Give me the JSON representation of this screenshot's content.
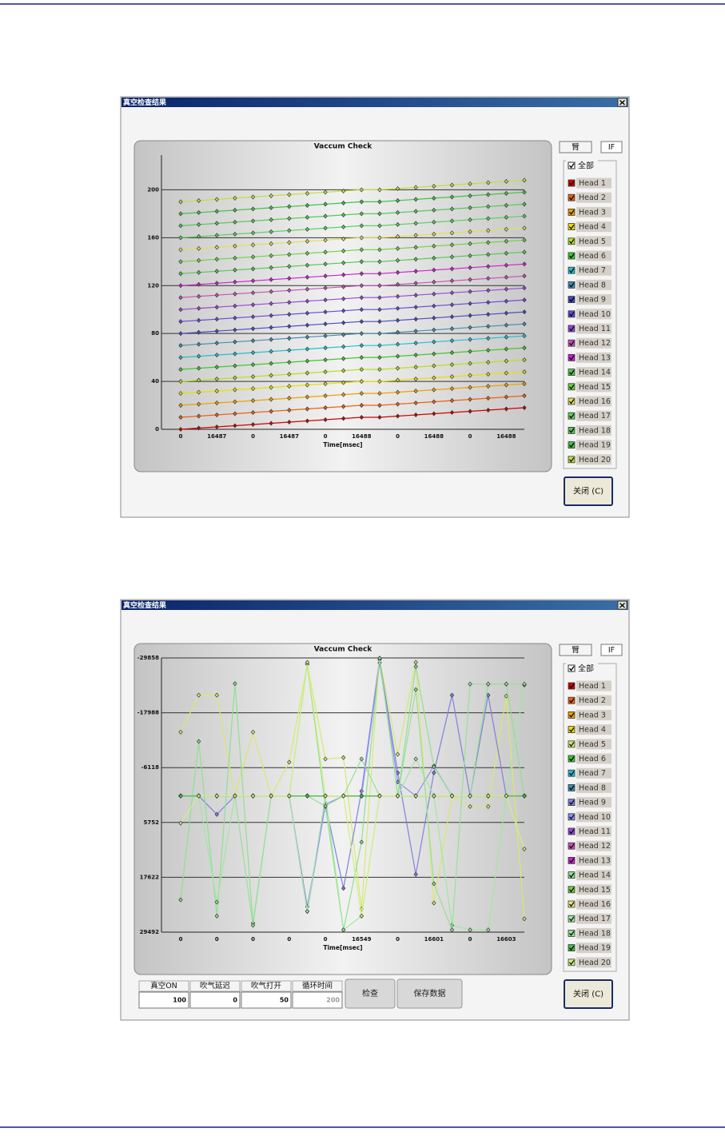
{
  "dialogs": [
    {
      "title": "真空检查结果",
      "tabs": [
        "臂",
        "IF"
      ],
      "all_label": "全部",
      "close": "关闭 (C)"
    },
    {
      "title": "真空检查结果",
      "tabs": [
        "臂",
        "IF"
      ],
      "all_label": "全部",
      "close": "关闭 (C)",
      "controls": [
        {
          "label": "真空ON",
          "value": 100
        },
        {
          "label": "吹气延迟",
          "value": 0
        },
        {
          "label": "吹气打开",
          "value": 50
        },
        {
          "label": "循环时间",
          "value": 200,
          "disabled": true
        }
      ],
      "buttons": [
        "检查",
        "保存数据"
      ]
    }
  ],
  "chart_data": [
    {
      "type": "line",
      "title": "Vaccum Check",
      "x_label": "Time[msec]",
      "grid": true,
      "categories": [
        "0",
        null,
        "16487",
        null,
        "0",
        null,
        "16487",
        null,
        "0",
        null,
        "16488",
        null,
        "0",
        null,
        "16488",
        null,
        "0",
        null,
        "16488",
        null
      ],
      "ylim": [
        0,
        229
      ],
      "yticks": [
        0,
        40,
        80,
        120,
        160,
        200
      ],
      "series": [
        {
          "name": "Head 1",
          "color": "#d00000",
          "values": [
            0,
            1,
            2,
            3,
            4,
            5,
            6,
            7,
            8,
            9,
            10,
            10,
            11,
            12,
            13,
            14,
            15,
            16,
            17,
            18
          ]
        },
        {
          "name": "Head 2",
          "color": "#f06010",
          "values": [
            10,
            11,
            12,
            13,
            14,
            15,
            16,
            17,
            18,
            19,
            20,
            20,
            21,
            22,
            23,
            24,
            25,
            26,
            27,
            28
          ]
        },
        {
          "name": "Head 3",
          "color": "#f0a000",
          "values": [
            20,
            21,
            22,
            23,
            24,
            25,
            26,
            27,
            28,
            29,
            30,
            30,
            31,
            32,
            33,
            34,
            35,
            36,
            37,
            38
          ]
        },
        {
          "name": "Head 4",
          "color": "#e8e000",
          "values": [
            30,
            31,
            32,
            33,
            34,
            35,
            36,
            37,
            38,
            39,
            40,
            40,
            41,
            42,
            43,
            44,
            45,
            46,
            47,
            48
          ]
        },
        {
          "name": "Head 5",
          "color": "#b8e020",
          "values": [
            40,
            41,
            42,
            43,
            44,
            45,
            46,
            47,
            48,
            49,
            50,
            50,
            51,
            52,
            53,
            54,
            55,
            56,
            57,
            58
          ]
        },
        {
          "name": "Head 6",
          "color": "#40c830",
          "values": [
            50,
            51,
            52,
            53,
            54,
            55,
            56,
            57,
            58,
            59,
            60,
            60,
            61,
            62,
            63,
            64,
            65,
            66,
            67,
            68
          ]
        },
        {
          "name": "Head 7",
          "color": "#20c0d0",
          "values": [
            60,
            61,
            62,
            63,
            64,
            65,
            66,
            67,
            68,
            69,
            70,
            70,
            71,
            72,
            73,
            74,
            75,
            76,
            77,
            78
          ]
        },
        {
          "name": "Head 8",
          "color": "#4090b0",
          "values": [
            70,
            71,
            72,
            73,
            74,
            75,
            76,
            77,
            78,
            79,
            80,
            80,
            81,
            82,
            83,
            84,
            85,
            86,
            87,
            88
          ]
        },
        {
          "name": "Head 9",
          "color": "#4848c8",
          "values": [
            80,
            81,
            82,
            83,
            84,
            85,
            86,
            87,
            88,
            89,
            90,
            90,
            91,
            92,
            93,
            94,
            95,
            96,
            97,
            98
          ]
        },
        {
          "name": "Head 10",
          "color": "#6848d8",
          "values": [
            90,
            91,
            92,
            93,
            94,
            95,
            96,
            97,
            98,
            99,
            100,
            100,
            101,
            102,
            103,
            104,
            105,
            106,
            107,
            108
          ]
        },
        {
          "name": "Head 11",
          "color": "#9848d8",
          "values": [
            100,
            101,
            102,
            103,
            104,
            105,
            106,
            107,
            108,
            109,
            110,
            110,
            111,
            112,
            113,
            114,
            115,
            116,
            117,
            118
          ]
        },
        {
          "name": "Head 12",
          "color": "#c850b8",
          "values": [
            110,
            111,
            112,
            113,
            114,
            115,
            116,
            117,
            118,
            119,
            120,
            120,
            121,
            122,
            123,
            124,
            125,
            126,
            127,
            128
          ]
        },
        {
          "name": "Head 13",
          "color": "#d020d0",
          "values": [
            120,
            121,
            122,
            123,
            124,
            125,
            126,
            127,
            128,
            129,
            130,
            130,
            131,
            132,
            133,
            134,
            135,
            136,
            137,
            138
          ]
        },
        {
          "name": "Head 14",
          "color": "#50c850",
          "values": [
            130,
            131,
            132,
            133,
            134,
            135,
            136,
            137,
            138,
            139,
            140,
            140,
            141,
            142,
            143,
            144,
            145,
            146,
            147,
            148
          ]
        },
        {
          "name": "Head 15",
          "color": "#70d040",
          "values": [
            140,
            141,
            142,
            143,
            144,
            145,
            146,
            147,
            148,
            149,
            150,
            150,
            151,
            152,
            153,
            154,
            155,
            156,
            157,
            158
          ]
        },
        {
          "name": "Head 16",
          "color": "#e0e050",
          "values": [
            150,
            151,
            152,
            153,
            154,
            155,
            156,
            157,
            158,
            159,
            160,
            160,
            161,
            162,
            163,
            164,
            165,
            166,
            167,
            168
          ]
        },
        {
          "name": "Head 17",
          "color": "#60d060",
          "values": [
            160,
            161,
            162,
            163,
            164,
            165,
            166,
            167,
            168,
            169,
            170,
            170,
            171,
            172,
            173,
            174,
            175,
            176,
            177,
            178
          ]
        },
        {
          "name": "Head 18",
          "color": "#58c858",
          "values": [
            170,
            171,
            172,
            173,
            174,
            175,
            176,
            177,
            178,
            179,
            180,
            180,
            181,
            182,
            183,
            184,
            185,
            186,
            187,
            188
          ]
        },
        {
          "name": "Head 19",
          "color": "#48c048",
          "values": [
            180,
            181,
            182,
            183,
            184,
            185,
            186,
            187,
            188,
            189,
            190,
            190,
            191,
            192,
            193,
            194,
            195,
            196,
            197,
            198
          ]
        },
        {
          "name": "Head 20",
          "color": "#c0e040",
          "values": [
            190,
            191,
            192,
            193,
            194,
            195,
            196,
            197,
            198,
            199,
            200,
            200,
            201,
            202,
            203,
            204,
            205,
            206,
            207,
            208
          ]
        }
      ]
    },
    {
      "type": "line",
      "title": "Vaccum Check",
      "x_label": "Time[msec]",
      "grid": true,
      "categories": [
        "0",
        null,
        "0",
        null,
        "0",
        null,
        "0",
        null,
        "0",
        null,
        "16549",
        null,
        "0",
        null,
        "16601",
        null,
        "0",
        null,
        "16603",
        null
      ],
      "ylim": [
        29492,
        -29858
      ],
      "yticks": [
        -29858,
        -17988,
        -6118,
        5752,
        17622,
        29492
      ],
      "series": [
        {
          "name": "Head 1",
          "color": "#d00000",
          "values": [
            0,
            0,
            0,
            0,
            0,
            0,
            0,
            0,
            0,
            0,
            0,
            0,
            0,
            0,
            0,
            0,
            0,
            0,
            0,
            0
          ]
        },
        {
          "name": "Head 2",
          "color": "#f06010",
          "values": [
            0,
            0,
            0,
            0,
            0,
            0,
            0,
            0,
            0,
            0,
            0,
            0,
            0,
            0,
            0,
            0,
            0,
            0,
            0,
            0
          ]
        },
        {
          "name": "Head 3",
          "color": "#f0a000",
          "values": [
            0,
            0,
            0,
            0,
            0,
            0,
            0,
            0,
            0,
            0,
            0,
            0,
            0,
            0,
            0,
            0,
            0,
            0,
            0,
            0
          ]
        },
        {
          "name": "Head 4",
          "color": "#e8e000",
          "values": [
            0,
            0,
            0,
            0,
            0,
            0,
            0,
            0,
            0,
            0,
            0,
            0,
            0,
            0,
            0,
            0,
            0,
            0,
            0,
            0
          ]
        },
        {
          "name": "Head 5",
          "color": "#d8e870",
          "values": [
            -13800,
            -21800,
            -21800,
            0,
            -13800,
            0,
            -7300,
            -28500,
            -8000,
            -8300,
            24500,
            -29800,
            -9000,
            -28900,
            23200,
            0,
            2300,
            2300,
            -21600,
            26600
          ]
        },
        {
          "name": "Head 6",
          "color": "#40c830",
          "values": [
            0,
            0,
            0,
            0,
            0,
            0,
            0,
            0,
            0,
            0,
            0,
            0,
            0,
            0,
            0,
            0,
            0,
            0,
            0,
            0
          ]
        },
        {
          "name": "Head 7",
          "color": "#20c0d0",
          "values": [
            0,
            0,
            0,
            0,
            0,
            0,
            0,
            0,
            0,
            0,
            0,
            0,
            0,
            0,
            0,
            0,
            0,
            0,
            0,
            0
          ]
        },
        {
          "name": "Head 8",
          "color": "#4090b0",
          "values": [
            0,
            0,
            0,
            0,
            0,
            0,
            0,
            0,
            0,
            0,
            0,
            0,
            0,
            0,
            0,
            0,
            0,
            0,
            0,
            0
          ]
        },
        {
          "name": "Head 9",
          "color": "#8080e0",
          "values": [
            0,
            0,
            4000,
            0,
            0,
            0,
            0,
            24000,
            1800,
            20000,
            -1000,
            -29500,
            -5000,
            17000,
            -5000,
            -21800,
            0,
            -21800,
            0,
            0
          ]
        },
        {
          "name": "Head 10",
          "color": "#9090f0",
          "values": [
            0,
            0,
            0,
            0,
            0,
            0,
            0,
            25000,
            1800,
            0,
            0,
            -28800,
            -3000,
            0,
            -6500,
            0,
            0,
            0,
            0,
            0
          ]
        },
        {
          "name": "Head 11",
          "color": "#9848d8",
          "values": [
            0,
            0,
            0,
            0,
            0,
            0,
            0,
            0,
            0,
            0,
            0,
            0,
            0,
            0,
            0,
            0,
            0,
            0,
            0,
            0
          ]
        },
        {
          "name": "Head 12",
          "color": "#c850b8",
          "values": [
            0,
            0,
            0,
            0,
            0,
            0,
            0,
            0,
            0,
            0,
            0,
            0,
            0,
            0,
            0,
            0,
            0,
            0,
            0,
            0
          ]
        },
        {
          "name": "Head 13",
          "color": "#d020d0",
          "values": [
            0,
            0,
            0,
            0,
            0,
            0,
            0,
            0,
            0,
            0,
            0,
            0,
            0,
            0,
            0,
            0,
            0,
            0,
            0,
            0
          ]
        },
        {
          "name": "Head 14",
          "color": "#90e090",
          "values": [
            22500,
            -11800,
            26000,
            -24300,
            27500,
            0,
            0,
            -28500,
            2300,
            29000,
            10000,
            -29800,
            0,
            -28000,
            -6300,
            0,
            0,
            -24200,
            -24200,
            0
          ]
        },
        {
          "name": "Head 15",
          "color": "#70d040",
          "values": [
            0,
            0,
            0,
            0,
            0,
            0,
            0,
            0,
            0,
            0,
            0,
            0,
            0,
            0,
            0,
            0,
            0,
            0,
            0,
            0
          ]
        },
        {
          "name": "Head 16",
          "color": "#e8e880",
          "values": [
            0,
            0,
            0,
            0,
            0,
            0,
            0,
            0,
            0,
            0,
            0,
            0,
            0,
            0,
            0,
            0,
            0,
            0,
            0,
            0
          ]
        },
        {
          "name": "Head 17",
          "color": "#a0e8a0",
          "values": [
            0,
            0,
            23000,
            0,
            0,
            0,
            0,
            25000,
            0,
            29000,
            26000,
            0,
            0,
            -8000,
            0,
            28000,
            29000,
            29000,
            0,
            -24000
          ]
        },
        {
          "name": "Head 18",
          "color": "#98e098",
          "values": [
            0,
            0,
            0,
            0,
            28000,
            0,
            0,
            0,
            2200,
            0,
            -8000,
            0,
            0,
            -23000,
            19000,
            29000,
            -24200,
            -24200,
            -24200,
            -24200
          ]
        },
        {
          "name": "Head 19",
          "color": "#48c048",
          "values": [
            0,
            0,
            0,
            0,
            0,
            0,
            0,
            0,
            0,
            0,
            0,
            0,
            0,
            0,
            0,
            0,
            0,
            0,
            0,
            0
          ]
        },
        {
          "name": "Head 20",
          "color": "#d0f080",
          "values": [
            5900,
            0,
            0,
            0,
            0,
            0,
            0,
            -28900,
            0,
            0,
            26000,
            0,
            0,
            0,
            0,
            0,
            0,
            0,
            0,
            11500
          ]
        }
      ]
    }
  ]
}
